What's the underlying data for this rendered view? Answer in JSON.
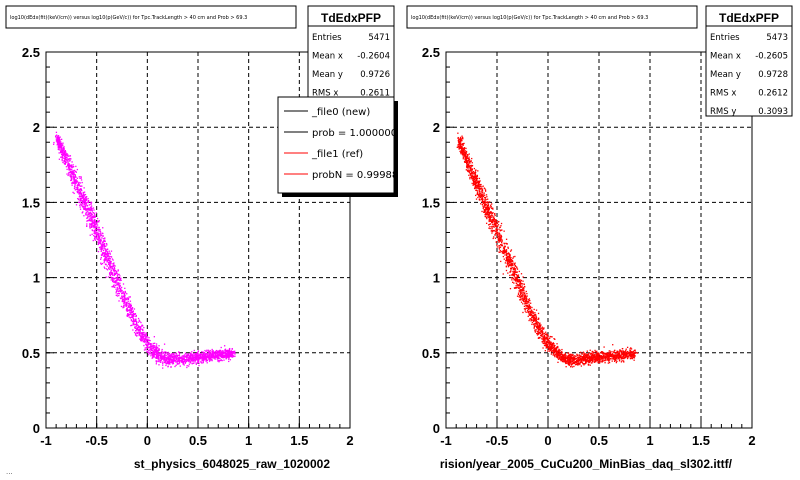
{
  "footer_note": "...",
  "chart_data": [
    {
      "type": "scatter",
      "title": "log10(dEdx(fit)(keV/cm)) versus log10(p(GeV/c)) for Tpc.TrackLength > 40 cm and Prob > 69.3",
      "xlabel": "st_physics_6048025_raw_1020002",
      "ylabel": "",
      "xlim": [
        -1,
        2
      ],
      "ylim": [
        0,
        2.5
      ],
      "xticks": [
        "-1",
        "-0.5",
        "0",
        "0.5",
        "1",
        "1.5",
        "2"
      ],
      "yticks": [
        "0",
        "0.5",
        "1",
        "1.5",
        "2",
        "2.5"
      ],
      "grid": true,
      "marker_color": "#ff00ff",
      "band": [
        {
          "x": -0.9,
          "y": 1.93,
          "w": 0.06
        },
        {
          "x": -0.8,
          "y": 1.78,
          "w": 0.08
        },
        {
          "x": -0.7,
          "y": 1.62,
          "w": 0.11
        },
        {
          "x": -0.6,
          "y": 1.46,
          "w": 0.13
        },
        {
          "x": -0.5,
          "y": 1.3,
          "w": 0.13
        },
        {
          "x": -0.4,
          "y": 1.13,
          "w": 0.12
        },
        {
          "x": -0.3,
          "y": 0.97,
          "w": 0.11
        },
        {
          "x": -0.2,
          "y": 0.81,
          "w": 0.1
        },
        {
          "x": -0.1,
          "y": 0.67,
          "w": 0.09
        },
        {
          "x": 0.0,
          "y": 0.56,
          "w": 0.08
        },
        {
          "x": 0.1,
          "y": 0.49,
          "w": 0.07
        },
        {
          "x": 0.2,
          "y": 0.46,
          "w": 0.06
        },
        {
          "x": 0.3,
          "y": 0.46,
          "w": 0.06
        },
        {
          "x": 0.45,
          "y": 0.47,
          "w": 0.05
        },
        {
          "x": 0.6,
          "y": 0.48,
          "w": 0.05
        },
        {
          "x": 0.85,
          "y": 0.5,
          "w": 0.05
        }
      ],
      "stats": {
        "name": "TdEdxPFP",
        "rows": [
          {
            "label": "Entries",
            "value": "5471"
          },
          {
            "label": "Mean x",
            "value": "-0.2604"
          },
          {
            "label": "Mean y",
            "value": "0.9726"
          },
          {
            "label": "RMS x",
            "value": "0.2611"
          }
        ]
      },
      "legend": {
        "entries": [
          {
            "label": "_file0 (new)",
            "color": "#000000"
          },
          {
            "label": "prob = 1.000000",
            "color": "#000000"
          },
          {
            "label": "_file1 (ref)",
            "color": "#ff0000"
          },
          {
            "label": "probN = 0.99988",
            "color": "#ff0000"
          }
        ]
      }
    },
    {
      "type": "scatter",
      "title": "log10(dEdx(fit)(keV/cm)) versus log10(p(GeV/c)) for Tpc.TrackLength > 40 cm and Prob > 69.3",
      "xlabel": "rision/year_2005_CuCu200_MinBias_daq_sl302.ittf/",
      "ylabel": "",
      "xlim": [
        -1,
        2
      ],
      "ylim": [
        0,
        2.5
      ],
      "xticks": [
        "-1",
        "-0.5",
        "0",
        "0.5",
        "1",
        "1.5",
        "2"
      ],
      "yticks": [
        "0",
        "0.5",
        "1",
        "1.5",
        "2",
        "2.5"
      ],
      "grid": true,
      "marker_color": "#ff0000",
      "band": [
        {
          "x": -0.88,
          "y": 1.92,
          "w": 0.06
        },
        {
          "x": -0.8,
          "y": 1.78,
          "w": 0.08
        },
        {
          "x": -0.7,
          "y": 1.62,
          "w": 0.1
        },
        {
          "x": -0.6,
          "y": 1.46,
          "w": 0.12
        },
        {
          "x": -0.5,
          "y": 1.3,
          "w": 0.12
        },
        {
          "x": -0.4,
          "y": 1.13,
          "w": 0.11
        },
        {
          "x": -0.3,
          "y": 0.97,
          "w": 0.1
        },
        {
          "x": -0.2,
          "y": 0.81,
          "w": 0.09
        },
        {
          "x": -0.1,
          "y": 0.67,
          "w": 0.08
        },
        {
          "x": 0.0,
          "y": 0.56,
          "w": 0.07
        },
        {
          "x": 0.1,
          "y": 0.49,
          "w": 0.06
        },
        {
          "x": 0.2,
          "y": 0.46,
          "w": 0.06
        },
        {
          "x": 0.3,
          "y": 0.46,
          "w": 0.06
        },
        {
          "x": 0.45,
          "y": 0.47,
          "w": 0.05
        },
        {
          "x": 0.6,
          "y": 0.48,
          "w": 0.05
        },
        {
          "x": 0.85,
          "y": 0.5,
          "w": 0.05
        }
      ],
      "stats": {
        "name": "TdEdxPFP",
        "rows": [
          {
            "label": "Entries",
            "value": "5473"
          },
          {
            "label": "Mean x",
            "value": "-0.2605"
          },
          {
            "label": "Mean y",
            "value": "0.9728"
          },
          {
            "label": "RMS x",
            "value": "0.2612"
          },
          {
            "label": "RMS y",
            "value": "0.3093"
          }
        ]
      }
    }
  ]
}
